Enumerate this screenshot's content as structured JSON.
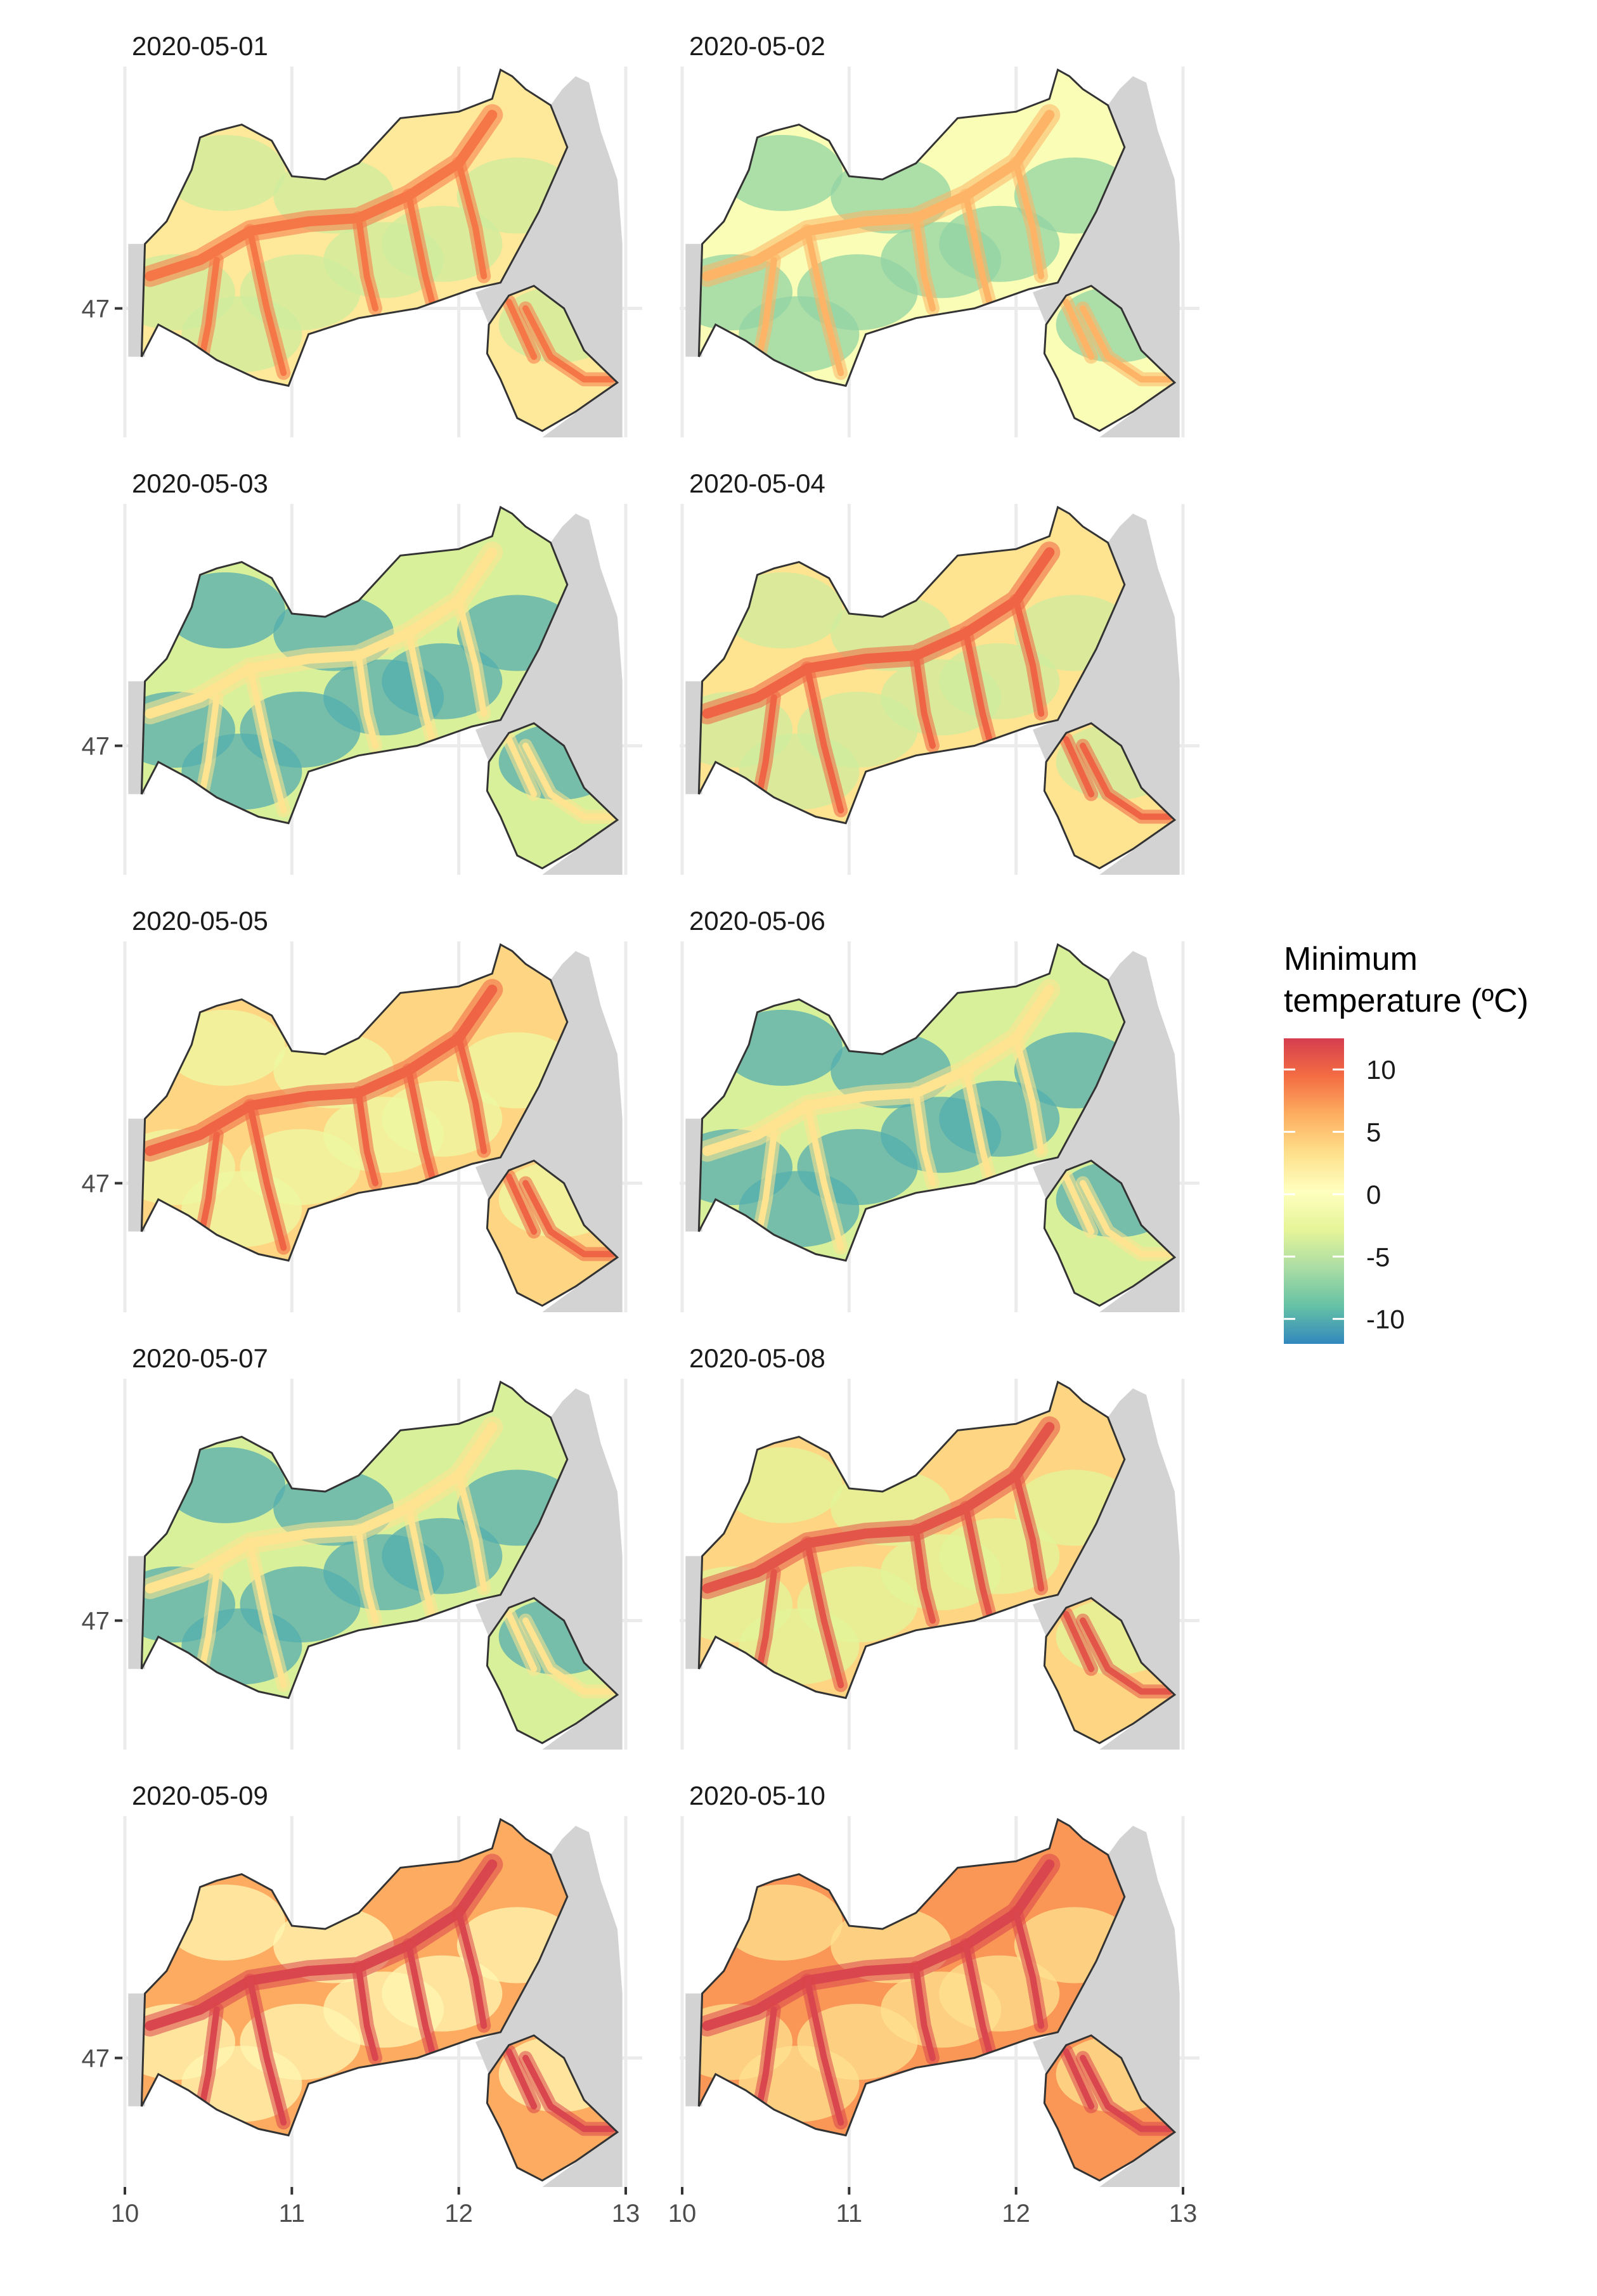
{
  "chart_data": {
    "type": "heatmap",
    "title": "",
    "xlabel": "",
    "ylabel": "",
    "xlim": [
      10.0,
      13.0
    ],
    "ylim": [
      46.6,
      47.75
    ],
    "x_ticks": [
      "10",
      "11",
      "12",
      "13"
    ],
    "y_ticks": [
      "47"
    ],
    "x_tick_values": [
      10,
      11,
      12,
      13
    ],
    "y_tick_values": [
      47
    ],
    "grid": true,
    "facets": [
      {
        "label": "2020-05-01",
        "valley_min_temp": 9,
        "mountain_min_temp": -4
      },
      {
        "label": "2020-05-02",
        "valley_min_temp": 6,
        "mountain_min_temp": -7
      },
      {
        "label": "2020-05-03",
        "valley_min_temp": 3,
        "mountain_min_temp": -10
      },
      {
        "label": "2020-05-04",
        "valley_min_temp": 10,
        "mountain_min_temp": -4
      },
      {
        "label": "2020-05-05",
        "valley_min_temp": 10,
        "mountain_min_temp": -2
      },
      {
        "label": "2020-05-06",
        "valley_min_temp": 3,
        "mountain_min_temp": -10
      },
      {
        "label": "2020-05-07",
        "valley_min_temp": 3,
        "mountain_min_temp": -10
      },
      {
        "label": "2020-05-08",
        "valley_min_temp": 11,
        "mountain_min_temp": -3
      },
      {
        "label": "2020-05-09",
        "valley_min_temp": 12,
        "mountain_min_temp": 1
      },
      {
        "label": "2020-05-10",
        "valley_min_temp": 12,
        "mountain_min_temp": 3
      }
    ],
    "legend": {
      "title_lines": [
        "Minimum",
        "temperature (ºC)"
      ],
      "position": "right",
      "breaks": [
        "10",
        "5",
        "0",
        "-5",
        "-10"
      ],
      "break_values": [
        10,
        5,
        0,
        -5,
        -10
      ],
      "limits": [
        -12,
        12.5
      ],
      "palette": "Spectral",
      "colors_low_to_high": [
        "#3288bd",
        "#66c2a5",
        "#abdda4",
        "#e6f598",
        "#ffffbf",
        "#fee08b",
        "#fdae61",
        "#f46d43",
        "#d53e4f"
      ]
    },
    "colors": {
      "panel_background": "#ffffff",
      "gridline": "#ebebeb",
      "neighbour_land": "#d3d3d3",
      "border": "#333333"
    }
  }
}
